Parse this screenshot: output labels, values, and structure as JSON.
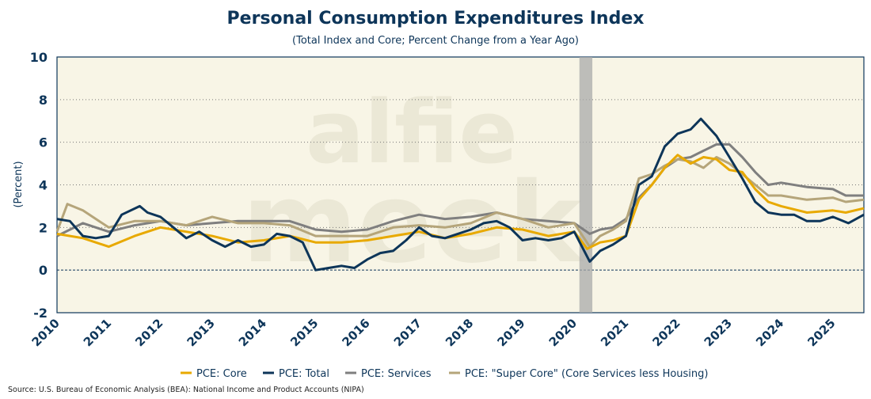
{
  "chart_data": {
    "type": "line",
    "title": "Personal Consumption Expenditures Index",
    "subtitle": "(Total Index and Core; Percent Change from a Year Ago)",
    "xlabel": "",
    "ylabel": "(Percent)",
    "ylim": [
      -2,
      10
    ],
    "xlim": [
      2010,
      2025.6
    ],
    "yticks": [
      "10",
      "8",
      "6",
      "4",
      "2",
      "0",
      "-2"
    ],
    "ytick_values": [
      10,
      8,
      6,
      4,
      2,
      0,
      -2
    ],
    "xticks": [
      "2010",
      "2011",
      "2012",
      "2013",
      "2014",
      "2015",
      "2016",
      "2017",
      "2018",
      "2019",
      "2020",
      "2021",
      "2022",
      "2023",
      "2024",
      "2025"
    ],
    "grid": true,
    "recession_shading": [
      2020.1,
      2020.35
    ],
    "legend_position": "bottom",
    "watermark": "alfie meek",
    "source": "Source: U.S. Bureau of Economic Analysis (BEA): National Income and Product Accounts (NIPA)",
    "series": [
      {
        "name": "PCE: Core",
        "color": "#e8a900",
        "points": [
          [
            2010,
            1.7
          ],
          [
            2010.5,
            1.5
          ],
          [
            2011,
            1.1
          ],
          [
            2011.5,
            1.6
          ],
          [
            2012,
            2.0
          ],
          [
            2012.5,
            1.8
          ],
          [
            2013,
            1.6
          ],
          [
            2013.5,
            1.3
          ],
          [
            2014,
            1.4
          ],
          [
            2014.5,
            1.6
          ],
          [
            2015,
            1.3
          ],
          [
            2015.5,
            1.3
          ],
          [
            2016,
            1.4
          ],
          [
            2016.5,
            1.6
          ],
          [
            2017,
            1.8
          ],
          [
            2017.5,
            1.5
          ],
          [
            2018,
            1.7
          ],
          [
            2018.5,
            2.0
          ],
          [
            2019,
            1.9
          ],
          [
            2019.5,
            1.6
          ],
          [
            2020,
            1.8
          ],
          [
            2020.25,
            1.0
          ],
          [
            2020.5,
            1.3
          ],
          [
            2020.75,
            1.4
          ],
          [
            2021,
            1.6
          ],
          [
            2021.25,
            3.3
          ],
          [
            2021.5,
            4.0
          ],
          [
            2021.75,
            4.8
          ],
          [
            2022,
            5.4
          ],
          [
            2022.25,
            5.0
          ],
          [
            2022.5,
            5.3
          ],
          [
            2022.75,
            5.2
          ],
          [
            2023,
            4.7
          ],
          [
            2023.25,
            4.6
          ],
          [
            2023.5,
            3.8
          ],
          [
            2023.75,
            3.2
          ],
          [
            2024,
            3.0
          ],
          [
            2024.5,
            2.7
          ],
          [
            2025,
            2.8
          ],
          [
            2025.25,
            2.7
          ],
          [
            2025.6,
            2.9
          ]
        ]
      },
      {
        "name": "PCE: Total",
        "color": "#0d3559",
        "points": [
          [
            2010,
            2.4
          ],
          [
            2010.25,
            2.3
          ],
          [
            2010.5,
            1.6
          ],
          [
            2010.75,
            1.5
          ],
          [
            2011,
            1.6
          ],
          [
            2011.25,
            2.6
          ],
          [
            2011.6,
            3.0
          ],
          [
            2011.75,
            2.7
          ],
          [
            2012,
            2.5
          ],
          [
            2012.25,
            2.0
          ],
          [
            2012.5,
            1.5
          ],
          [
            2012.75,
            1.8
          ],
          [
            2013,
            1.4
          ],
          [
            2013.25,
            1.1
          ],
          [
            2013.5,
            1.4
          ],
          [
            2013.75,
            1.1
          ],
          [
            2014,
            1.2
          ],
          [
            2014.25,
            1.7
          ],
          [
            2014.5,
            1.6
          ],
          [
            2014.75,
            1.3
          ],
          [
            2015,
            0.0
          ],
          [
            2015.25,
            0.1
          ],
          [
            2015.5,
            0.2
          ],
          [
            2015.75,
            0.1
          ],
          [
            2016,
            0.5
          ],
          [
            2016.25,
            0.8
          ],
          [
            2016.5,
            0.9
          ],
          [
            2016.75,
            1.4
          ],
          [
            2017,
            2.0
          ],
          [
            2017.25,
            1.6
          ],
          [
            2017.5,
            1.5
          ],
          [
            2017.75,
            1.7
          ],
          [
            2018,
            1.9
          ],
          [
            2018.25,
            2.2
          ],
          [
            2018.5,
            2.3
          ],
          [
            2018.75,
            2.0
          ],
          [
            2019,
            1.4
          ],
          [
            2019.25,
            1.5
          ],
          [
            2019.5,
            1.4
          ],
          [
            2019.75,
            1.5
          ],
          [
            2020,
            1.8
          ],
          [
            2020.3,
            0.4
          ],
          [
            2020.5,
            0.9
          ],
          [
            2020.75,
            1.2
          ],
          [
            2021,
            1.6
          ],
          [
            2021.25,
            4.0
          ],
          [
            2021.5,
            4.4
          ],
          [
            2021.75,
            5.8
          ],
          [
            2022,
            6.4
          ],
          [
            2022.25,
            6.6
          ],
          [
            2022.45,
            7.1
          ],
          [
            2022.75,
            6.3
          ],
          [
            2023,
            5.3
          ],
          [
            2023.25,
            4.3
          ],
          [
            2023.5,
            3.2
          ],
          [
            2023.75,
            2.7
          ],
          [
            2024,
            2.6
          ],
          [
            2024.25,
            2.6
          ],
          [
            2024.5,
            2.3
          ],
          [
            2024.75,
            2.3
          ],
          [
            2025,
            2.5
          ],
          [
            2025.3,
            2.2
          ],
          [
            2025.6,
            2.6
          ]
        ]
      },
      {
        "name": "PCE: Services",
        "color": "#7f7f7f",
        "points": [
          [
            2010,
            1.6
          ],
          [
            2010.5,
            2.2
          ],
          [
            2011,
            1.8
          ],
          [
            2011.5,
            2.1
          ],
          [
            2012,
            2.3
          ],
          [
            2012.5,
            2.1
          ],
          [
            2013,
            2.2
          ],
          [
            2013.5,
            2.3
          ],
          [
            2014,
            2.3
          ],
          [
            2014.5,
            2.3
          ],
          [
            2015,
            1.9
          ],
          [
            2015.5,
            1.8
          ],
          [
            2016,
            1.9
          ],
          [
            2016.5,
            2.3
          ],
          [
            2017,
            2.6
          ],
          [
            2017.5,
            2.4
          ],
          [
            2018,
            2.5
          ],
          [
            2018.5,
            2.7
          ],
          [
            2019,
            2.4
          ],
          [
            2019.5,
            2.3
          ],
          [
            2020,
            2.2
          ],
          [
            2020.3,
            1.7
          ],
          [
            2020.5,
            1.9
          ],
          [
            2020.75,
            2.0
          ],
          [
            2021,
            2.4
          ],
          [
            2021.25,
            3.4
          ],
          [
            2021.5,
            4.0
          ],
          [
            2021.75,
            4.8
          ],
          [
            2022,
            5.2
          ],
          [
            2022.25,
            5.3
          ],
          [
            2022.5,
            5.6
          ],
          [
            2022.75,
            5.9
          ],
          [
            2023,
            5.9
          ],
          [
            2023.25,
            5.3
          ],
          [
            2023.5,
            4.6
          ],
          [
            2023.75,
            4.0
          ],
          [
            2024,
            4.1
          ],
          [
            2024.5,
            3.9
          ],
          [
            2025,
            3.8
          ],
          [
            2025.25,
            3.5
          ],
          [
            2025.6,
            3.5
          ]
        ]
      },
      {
        "name": "PCE: \"Super Core\" (Core Services less Housing)",
        "color": "#b5a57a",
        "points": [
          [
            2010,
            1.8
          ],
          [
            2010.2,
            3.1
          ],
          [
            2010.5,
            2.8
          ],
          [
            2011,
            2.0
          ],
          [
            2011.5,
            2.3
          ],
          [
            2012,
            2.3
          ],
          [
            2012.5,
            2.1
          ],
          [
            2013,
            2.5
          ],
          [
            2013.5,
            2.2
          ],
          [
            2014,
            2.2
          ],
          [
            2014.5,
            2.1
          ],
          [
            2015,
            1.6
          ],
          [
            2015.5,
            1.6
          ],
          [
            2016,
            1.6
          ],
          [
            2016.5,
            2.0
          ],
          [
            2017,
            2.1
          ],
          [
            2017.5,
            2.0
          ],
          [
            2018,
            2.2
          ],
          [
            2018.5,
            2.7
          ],
          [
            2019,
            2.4
          ],
          [
            2019.5,
            2.0
          ],
          [
            2020,
            2.2
          ],
          [
            2020.3,
            1.1
          ],
          [
            2020.5,
            1.6
          ],
          [
            2020.75,
            1.9
          ],
          [
            2021,
            2.3
          ],
          [
            2021.25,
            4.3
          ],
          [
            2021.5,
            4.5
          ],
          [
            2021.75,
            4.9
          ],
          [
            2022,
            5.2
          ],
          [
            2022.25,
            5.1
          ],
          [
            2022.5,
            4.8
          ],
          [
            2022.75,
            5.3
          ],
          [
            2023,
            5.0
          ],
          [
            2023.25,
            4.5
          ],
          [
            2023.5,
            4.0
          ],
          [
            2023.75,
            3.5
          ],
          [
            2024,
            3.5
          ],
          [
            2024.5,
            3.3
          ],
          [
            2025,
            3.4
          ],
          [
            2025.25,
            3.2
          ],
          [
            2025.6,
            3.3
          ]
        ]
      }
    ]
  }
}
